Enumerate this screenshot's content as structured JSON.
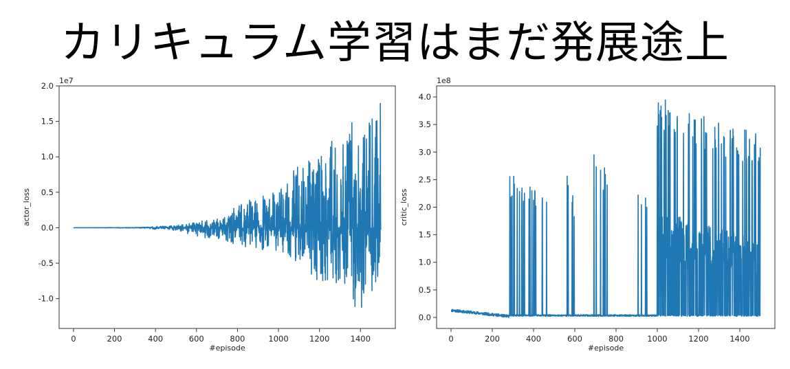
{
  "title": "カリキュラム学習はまだ発展途上",
  "chart_data": [
    {
      "type": "line",
      "xlabel": "#episode",
      "ylabel": "actor_loss",
      "offset_label": "1e7",
      "xlim": [
        -70,
        1570
      ],
      "ylim": [
        -1.42,
        2.0
      ],
      "xticks": [
        0,
        200,
        400,
        600,
        800,
        1000,
        1200,
        1400
      ],
      "yticks": [
        -1.0,
        -0.5,
        0.0,
        0.5,
        1.0,
        1.5,
        2.0
      ],
      "ytick_labels": [
        "-1.0",
        "-0.5",
        "0.0",
        "0.5",
        "1.0",
        "1.5",
        "2.0"
      ],
      "color": "#1f77b4",
      "n_points": 1500,
      "envelope": [
        {
          "x": 0,
          "upper": 0.0,
          "lower": 0.0
        },
        {
          "x": 300,
          "upper": 0.005,
          "lower": -0.005
        },
        {
          "x": 500,
          "upper": 0.03,
          "lower": -0.04
        },
        {
          "x": 600,
          "upper": 0.08,
          "lower": -0.12
        },
        {
          "x": 700,
          "upper": 0.15,
          "lower": -0.2
        },
        {
          "x": 800,
          "upper": 0.3,
          "lower": -0.3
        },
        {
          "x": 900,
          "upper": 0.45,
          "lower": -0.3
        },
        {
          "x": 1000,
          "upper": 0.55,
          "lower": -0.35
        },
        {
          "x": 1100,
          "upper": 0.9,
          "lower": -0.5
        },
        {
          "x": 1200,
          "upper": 1.1,
          "lower": -0.85
        },
        {
          "x": 1300,
          "upper": 1.3,
          "lower": -0.8
        },
        {
          "x": 1400,
          "upper": 1.65,
          "lower": -1.27
        },
        {
          "x": 1500,
          "upper": 1.85,
          "lower": -0.6
        }
      ]
    },
    {
      "type": "line",
      "xlabel": "#episode",
      "ylabel": "critic_loss",
      "offset_label": "1e8",
      "xlim": [
        -70,
        1570
      ],
      "ylim": [
        -0.2,
        4.2
      ],
      "xticks": [
        0,
        200,
        400,
        600,
        800,
        1000,
        1200,
        1400
      ],
      "yticks": [
        0.0,
        0.5,
        1.0,
        1.5,
        2.0,
        2.5,
        3.0,
        3.5,
        4.0
      ],
      "ytick_labels": [
        "0.0",
        "0.5",
        "1.0",
        "1.5",
        "2.0",
        "2.5",
        "3.0",
        "3.5",
        "4.0"
      ],
      "color": "#1f77b4",
      "n_points": 1500,
      "early_segment": {
        "x_end": 280,
        "start_value": 0.13,
        "end_value": 0.02
      },
      "spike_runs": [
        {
          "x_start": 280,
          "x_end": 500,
          "peak_start": 2.62,
          "peak_end": 2.1
        },
        {
          "x_start": 560,
          "x_end": 600,
          "peak_start": 2.9,
          "peak_end": 2.0
        },
        {
          "x_start": 680,
          "x_end": 760,
          "peak_start": 3.18,
          "peak_end": 2.6
        },
        {
          "x_start": 900,
          "x_end": 960,
          "peak_start": 2.36,
          "peak_end": 2.2
        },
        {
          "x_start": 1000,
          "x_end": 1500,
          "peak_start": 4.03,
          "peak_end": 3.3
        }
      ],
      "dense_band": {
        "x_start": 1000,
        "x_end": 1500,
        "level_start": 1.95,
        "level_end": 1.4
      }
    }
  ]
}
